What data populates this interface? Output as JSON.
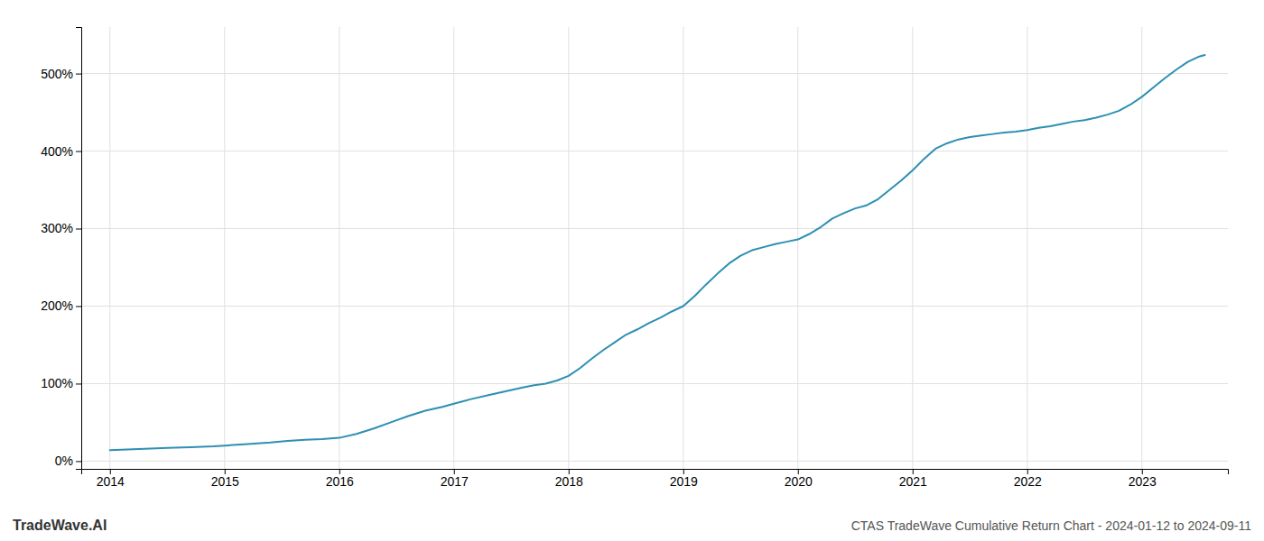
{
  "chart_data": {
    "type": "line",
    "title": "CTAS TradeWave Cumulative Return Chart - 2024-01-12 to 2024-09-11",
    "annotations": [
      "TradeWave.AI"
    ],
    "color": "#2d8fb3",
    "grid": true,
    "x": [
      2014.0,
      2014.15,
      2014.3,
      2014.5,
      2014.7,
      2014.9,
      2015.0,
      2015.2,
      2015.4,
      2015.55,
      2015.7,
      2015.85,
      2016.0,
      2016.15,
      2016.3,
      2016.45,
      2016.6,
      2016.75,
      2016.9,
      2017.0,
      2017.15,
      2017.3,
      2017.45,
      2017.6,
      2017.7,
      2017.8,
      2017.9,
      2018.0,
      2018.1,
      2018.2,
      2018.3,
      2018.4,
      2018.5,
      2018.6,
      2018.7,
      2018.8,
      2018.9,
      2019.0,
      2019.1,
      2019.2,
      2019.3,
      2019.4,
      2019.5,
      2019.6,
      2019.7,
      2019.8,
      2019.9,
      2020.0,
      2020.1,
      2020.2,
      2020.3,
      2020.4,
      2020.5,
      2020.6,
      2020.7,
      2020.8,
      2020.9,
      2021.0,
      2021.1,
      2021.2,
      2021.3,
      2021.4,
      2021.5,
      2021.6,
      2021.7,
      2021.8,
      2021.9,
      2022.0,
      2022.1,
      2022.2,
      2022.3,
      2022.4,
      2022.5,
      2022.6,
      2022.7,
      2022.8,
      2022.9,
      2023.0,
      2023.1,
      2023.2,
      2023.3,
      2023.4,
      2023.5,
      2023.55
    ],
    "values": [
      14.0,
      15.0,
      16.0,
      17.0,
      18.0,
      19.0,
      20.0,
      22.0,
      24.0,
      26.0,
      27.5,
      28.5,
      30.0,
      35.0,
      42.0,
      50.0,
      58.0,
      65.0,
      70.0,
      74.0,
      80.0,
      85.0,
      90.0,
      95.0,
      98.0,
      100.0,
      104.0,
      110.0,
      120.0,
      132.0,
      143.0,
      153.0,
      163.0,
      170.0,
      178.0,
      185.0,
      193.0,
      200.0,
      213.0,
      228.0,
      242.0,
      255.0,
      265.0,
      272.0,
      276.0,
      280.0,
      283.0,
      286.0,
      293.0,
      302.0,
      313.0,
      320.0,
      326.0,
      330.0,
      338.0,
      350.0,
      362.0,
      375.0,
      390.0,
      403.0,
      410.0,
      415.0,
      418.0,
      420.0,
      422.0,
      424.0,
      425.0,
      427.0,
      430.0,
      432.0,
      435.0,
      438.0,
      440.0,
      443.0,
      447.0,
      452.0,
      460.0,
      470.0,
      482.0,
      494.0,
      505.0,
      515.0,
      522.0,
      524.0
    ],
    "xlim": [
      2013.75,
      2023.75
    ],
    "xticks": [
      2014,
      2015,
      2016,
      2017,
      2018,
      2019,
      2020,
      2021,
      2022,
      2023
    ],
    "ylim": [
      -10,
      560
    ],
    "yticks": [
      {
        "value": 0,
        "label": "0%"
      },
      {
        "value": 100,
        "label": "100%"
      },
      {
        "value": 200,
        "label": "200%"
      },
      {
        "value": 300,
        "label": "300%"
      },
      {
        "value": 400,
        "label": "400%"
      },
      {
        "value": 500,
        "label": "500%"
      }
    ]
  }
}
